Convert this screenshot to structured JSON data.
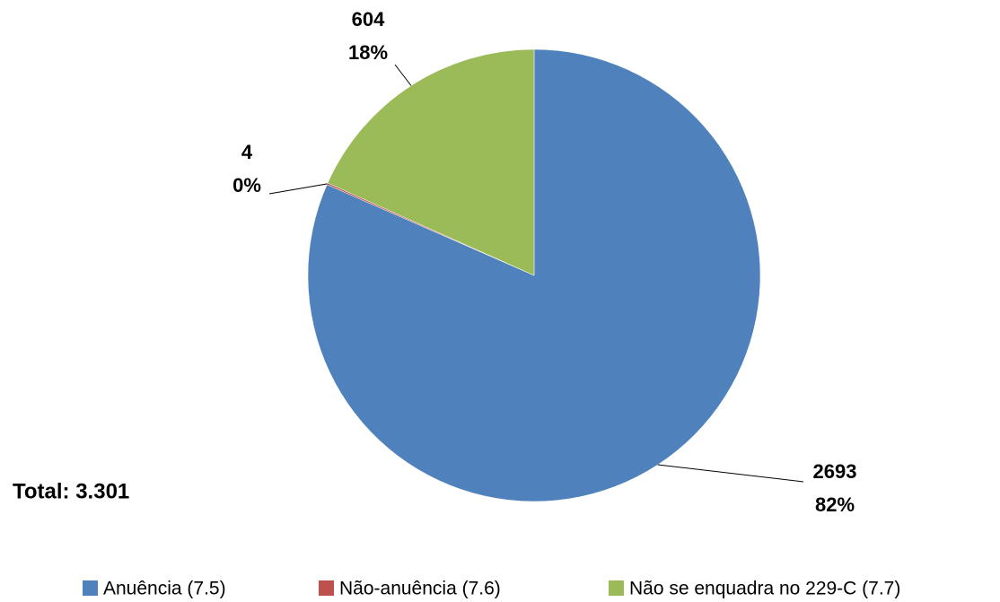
{
  "chart_data": {
    "type": "pie",
    "categories": [
      "Anuência (7.5)",
      "Não-anuência (7.6)",
      "Não se enquadra no 229-C (7.7)"
    ],
    "series": [
      {
        "values": [
          2693,
          4,
          604
        ],
        "value_labels": [
          "2693",
          "4",
          "604"
        ],
        "percent_labels": [
          "82%",
          "0%",
          "18%"
        ],
        "colors": [
          "#4f81bd",
          "#c0504d",
          "#9bbb59"
        ]
      }
    ],
    "annotations": [
      "Total: 3.301"
    ],
    "legend": "bottom"
  }
}
